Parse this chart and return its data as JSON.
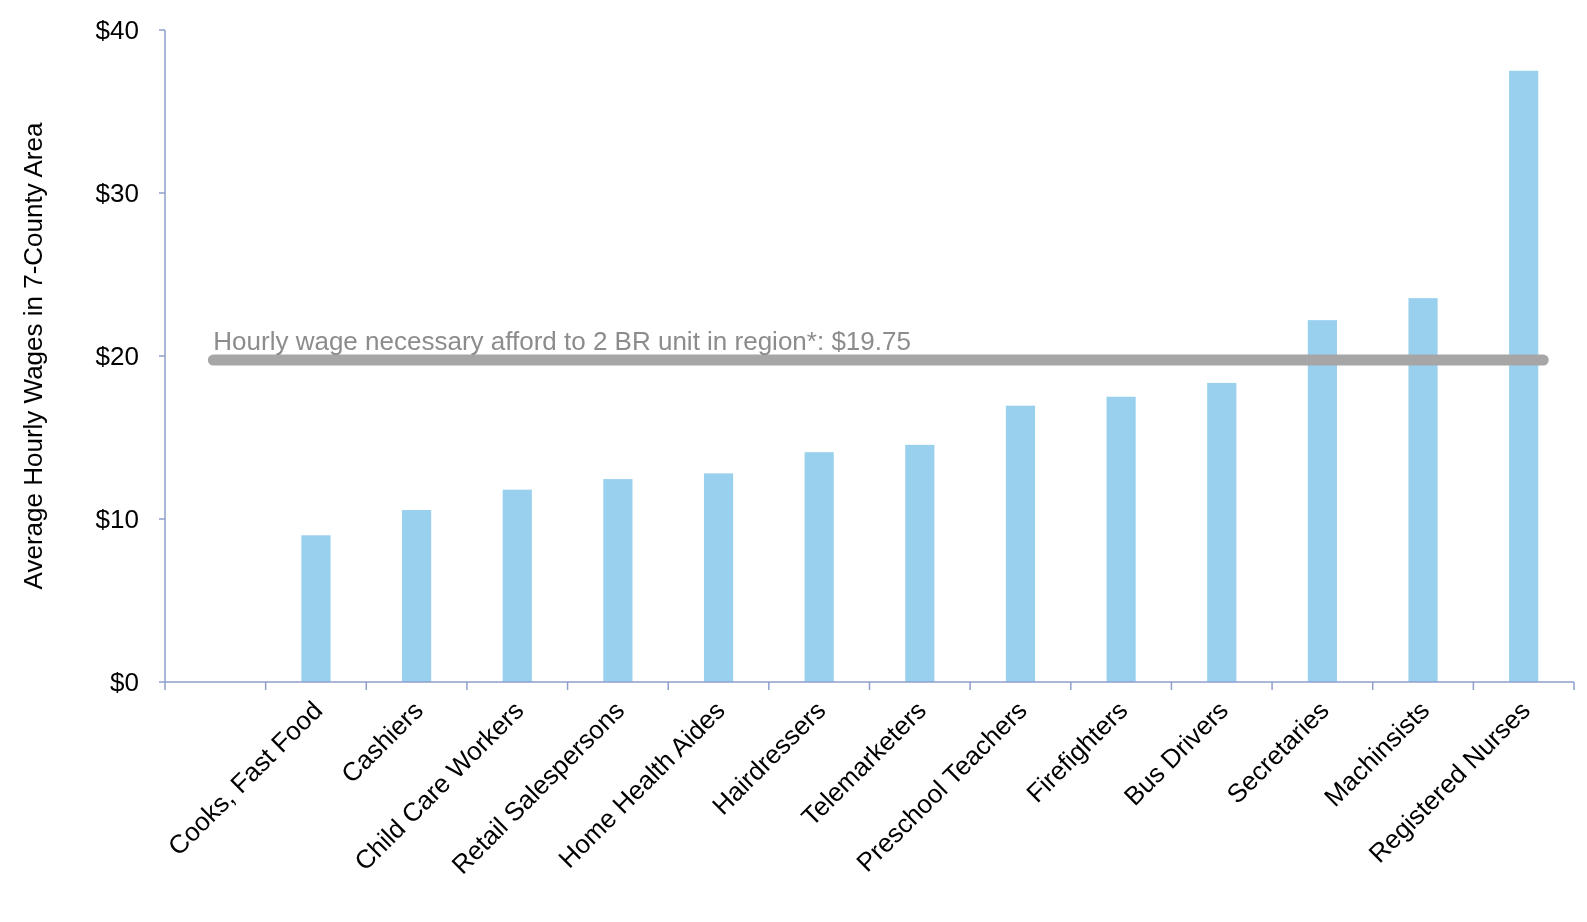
{
  "chart_data": {
    "type": "bar",
    "ylabel": "Average Hourly Wages in 7-County Area",
    "categories": [
      null,
      "Cooks, Fast Food",
      "Cashiers",
      "Child Care Workers",
      "Retail Salespersons",
      "Home Health Aides",
      "Hairdressers",
      "Telemarketers",
      "Preschool Teachers",
      "Firefighters",
      "Bus Drivers",
      "Secretaries",
      "Machinsists",
      "Registered Nurses"
    ],
    "values": [
      null,
      9.0,
      10.55,
      11.8,
      12.45,
      12.8,
      14.1,
      14.55,
      16.95,
      17.5,
      18.35,
      22.2,
      23.55,
      37.5
    ],
    "color": "#99d0ee",
    "ylim": [
      0,
      40
    ],
    "yticks": [
      {
        "value": 0,
        "label": "$0"
      },
      {
        "value": 10,
        "label": "$10"
      },
      {
        "value": 20,
        "label": "$20"
      },
      {
        "value": 30,
        "label": "$30"
      },
      {
        "value": 40,
        "label": "$40"
      }
    ],
    "ref_lines": [
      {
        "axis": "y",
        "value": 19.75,
        "label": "Hourly wage necessary afford to 2 BR unit in region*: $19.75",
        "color": "#a6a6a6"
      }
    ],
    "grid": false
  }
}
